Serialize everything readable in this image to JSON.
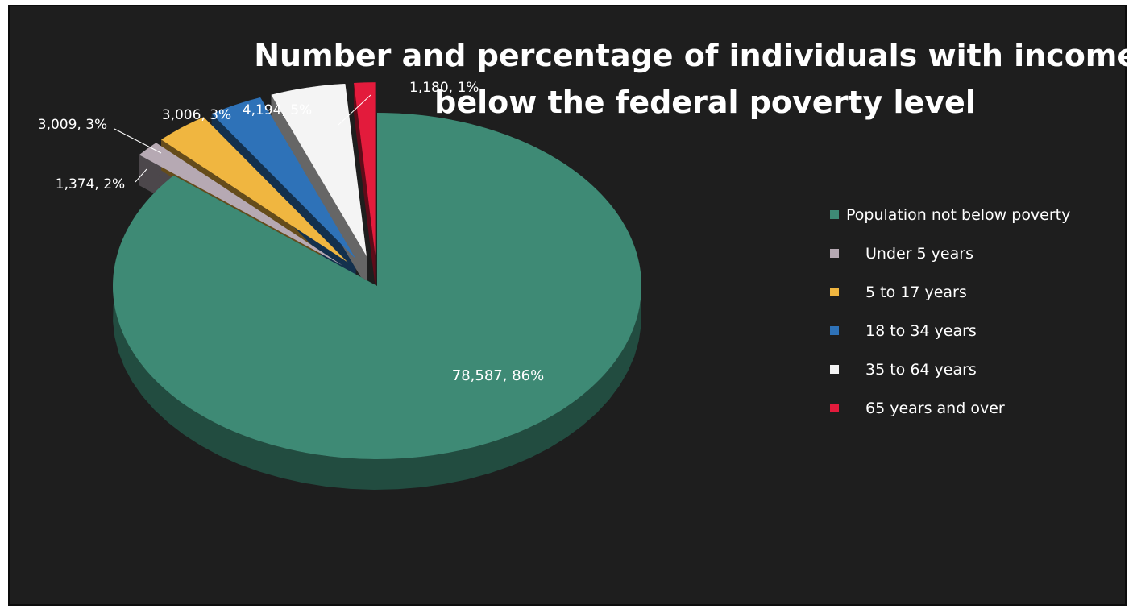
{
  "chart_data": {
    "type": "pie",
    "title_line1": "Number and percentage of individuals with incomes",
    "title_line2": "below the federal poverty level",
    "slices": [
      {
        "name": "Population not below poverty",
        "value": 78587,
        "label": "78,587, 86%",
        "color": "#3e8a75"
      },
      {
        "name": "Under 5 years",
        "value": 1374,
        "label": "1,374, 2%",
        "color": "#b6a9b3"
      },
      {
        "name": "5 to 17 years",
        "value": 3009,
        "label": "3,009, 3%",
        "color": "#f0b640"
      },
      {
        "name": "18 to 34 years",
        "value": 3006,
        "label": "3,006, 3%",
        "color": "#2e72b8"
      },
      {
        "name": "35 to 64 years",
        "value": 4194,
        "label": "4,194, 5%",
        "color": "#f4f4f4"
      },
      {
        "name": "65 years and over",
        "value": 1180,
        "label": "1,180, 1%",
        "color": "#e31b3c"
      }
    ],
    "legend_position": "right",
    "three_d": true
  }
}
